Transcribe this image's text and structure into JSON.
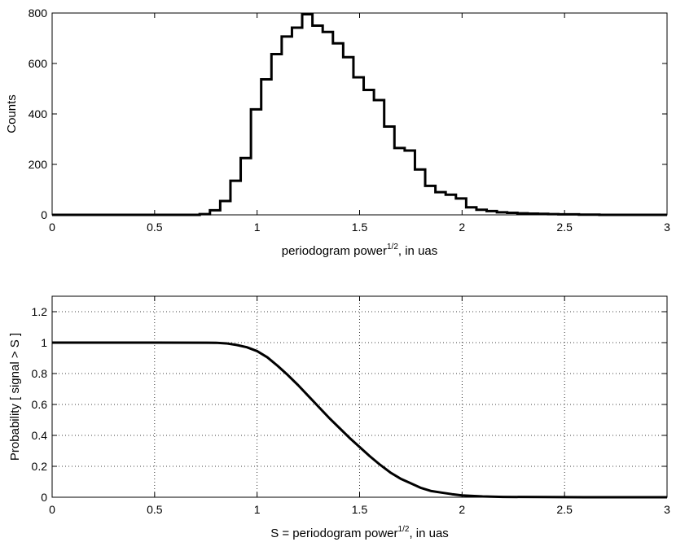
{
  "chart_data": [
    {
      "type": "histogram",
      "xlabel": "periodogram power",
      "xlabel_sup": "1/2",
      "xlabel_suffix": ", in uas",
      "ylabel": "Counts",
      "xlim": [
        0,
        3
      ],
      "ylim": [
        0,
        800
      ],
      "xticks": [
        "0",
        "0.5",
        "1",
        "1.5",
        "2",
        "2.5",
        "3"
      ],
      "yticks": [
        "0",
        "200",
        "400",
        "600",
        "800"
      ],
      "grid": false,
      "bin_edges": [
        0.72,
        0.77,
        0.82,
        0.87,
        0.92,
        0.97,
        1.02,
        1.07,
        1.12,
        1.17,
        1.22,
        1.27,
        1.32,
        1.37,
        1.42,
        1.47,
        1.52,
        1.57,
        1.62,
        1.67,
        1.72,
        1.77,
        1.82,
        1.87,
        1.92,
        1.97,
        2.02,
        2.07,
        2.12,
        2.17,
        2.22,
        2.27,
        2.32,
        2.37,
        2.42,
        2.47,
        2.52,
        2.57,
        2.62,
        2.67
      ],
      "counts": [
        3,
        18,
        55,
        135,
        225,
        418,
        537,
        637,
        707,
        742,
        795,
        750,
        725,
        680,
        625,
        545,
        495,
        455,
        350,
        265,
        255,
        180,
        115,
        90,
        80,
        65,
        30,
        20,
        15,
        10,
        8,
        6,
        5,
        4,
        3,
        2,
        2,
        1,
        1
      ]
    },
    {
      "type": "line",
      "xlabel": "S = periodogram power",
      "xlabel_sup": "1/2",
      "xlabel_suffix": ", in uas",
      "ylabel": "Probability [ signal > S ]",
      "xlim": [
        0,
        3
      ],
      "ylim": [
        0,
        1.3
      ],
      "xticks": [
        "0",
        "0.5",
        "1",
        "1.5",
        "2",
        "2.5",
        "3"
      ],
      "yticks": [
        "0",
        "0.2",
        "0.4",
        "0.6",
        "0.8",
        "1",
        "1.2"
      ],
      "grid": true,
      "x": [
        0,
        0.5,
        0.8,
        0.85,
        0.9,
        0.95,
        1.0,
        1.05,
        1.1,
        1.15,
        1.2,
        1.25,
        1.3,
        1.35,
        1.4,
        1.45,
        1.5,
        1.55,
        1.6,
        1.65,
        1.7,
        1.75,
        1.8,
        1.85,
        1.9,
        1.95,
        2.0,
        2.1,
        2.2,
        2.4,
        2.6,
        3.0
      ],
      "y": [
        1.0,
        1.0,
        0.999,
        0.995,
        0.985,
        0.97,
        0.945,
        0.905,
        0.85,
        0.79,
        0.725,
        0.655,
        0.585,
        0.515,
        0.45,
        0.385,
        0.325,
        0.265,
        0.21,
        0.16,
        0.12,
        0.09,
        0.06,
        0.04,
        0.03,
        0.02,
        0.012,
        0.005,
        0.002,
        0.001,
        0.0,
        0.0
      ]
    }
  ]
}
